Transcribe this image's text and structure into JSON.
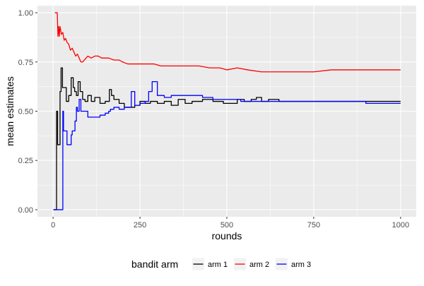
{
  "chart_data": {
    "type": "line",
    "xlabel": "rounds",
    "ylabel": "mean estimates",
    "xlim": [
      -45,
      1045
    ],
    "ylim": [
      -0.036,
      1.036
    ],
    "x_ticks": [
      0,
      250,
      500,
      750,
      1000
    ],
    "x_tick_labels": [
      "0",
      "250",
      "500",
      "750",
      "1000"
    ],
    "y_ticks": [
      0,
      0.25,
      0.5,
      0.75,
      1.0
    ],
    "y_tick_labels": [
      "0.00",
      "0.25",
      "0.50",
      "0.75",
      "1.00"
    ],
    "grid": true,
    "background_color": "#EBEBEB",
    "legend": {
      "title": "bandit arm",
      "position": "bottom",
      "entries": [
        "arm 1",
        "arm 2",
        "arm 3"
      ]
    },
    "series": [
      {
        "name": "arm 1",
        "color": "#000000",
        "step": true,
        "x": [
          1,
          8,
          10,
          13,
          17,
          20,
          23,
          27,
          32,
          38,
          45,
          52,
          58,
          62,
          67,
          72,
          78,
          85,
          92,
          100,
          110,
          120,
          135,
          150,
          162,
          168,
          175,
          190,
          205,
          220,
          235,
          250,
          265,
          280,
          300,
          320,
          340,
          360,
          380,
          400,
          430,
          460,
          490,
          510,
          530,
          550,
          570,
          585,
          600,
          620,
          650,
          700,
          750,
          800,
          850,
          900,
          950,
          1000
        ],
        "values": [
          0.0,
          0.0,
          0.5,
          0.33,
          0.33,
          0.6,
          0.72,
          0.62,
          0.62,
          0.55,
          0.58,
          0.67,
          0.62,
          0.6,
          0.58,
          0.65,
          0.6,
          0.56,
          0.55,
          0.58,
          0.55,
          0.57,
          0.54,
          0.55,
          0.61,
          0.58,
          0.56,
          0.54,
          0.52,
          0.52,
          0.53,
          0.55,
          0.54,
          0.55,
          0.54,
          0.55,
          0.53,
          0.56,
          0.54,
          0.55,
          0.56,
          0.55,
          0.54,
          0.54,
          0.56,
          0.55,
          0.56,
          0.57,
          0.55,
          0.56,
          0.55,
          0.55,
          0.55,
          0.55,
          0.55,
          0.55,
          0.55,
          0.55
        ]
      },
      {
        "name": "arm 2",
        "color": "#FF0000",
        "step": false,
        "x": [
          5,
          9,
          12,
          14,
          16,
          18,
          20,
          24,
          28,
          32,
          36,
          40,
          45,
          50,
          55,
          60,
          65,
          70,
          75,
          80,
          85,
          90,
          95,
          100,
          110,
          120,
          130,
          140,
          150,
          160,
          175,
          190,
          200,
          215,
          230,
          250,
          270,
          290,
          310,
          330,
          350,
          370,
          390,
          420,
          450,
          480,
          500,
          530,
          560,
          600,
          650,
          700,
          750,
          800,
          850,
          900,
          950,
          1000
        ],
        "values": [
          1.0,
          1.0,
          1.0,
          0.88,
          0.93,
          0.88,
          0.93,
          0.89,
          0.9,
          0.86,
          0.87,
          0.85,
          0.84,
          0.81,
          0.82,
          0.8,
          0.78,
          0.79,
          0.77,
          0.75,
          0.75,
          0.76,
          0.77,
          0.78,
          0.77,
          0.78,
          0.78,
          0.77,
          0.77,
          0.77,
          0.76,
          0.76,
          0.75,
          0.74,
          0.74,
          0.74,
          0.74,
          0.74,
          0.73,
          0.73,
          0.73,
          0.73,
          0.73,
          0.73,
          0.72,
          0.72,
          0.71,
          0.72,
          0.71,
          0.7,
          0.7,
          0.7,
          0.7,
          0.71,
          0.71,
          0.71,
          0.71,
          0.71
        ]
      },
      {
        "name": "arm 3",
        "color": "#0000FF",
        "step": true,
        "x": [
          1,
          25,
          28,
          30,
          34,
          40,
          47,
          52,
          55,
          58,
          63,
          67,
          70,
          75,
          80,
          90,
          100,
          110,
          120,
          135,
          150,
          160,
          165,
          175,
          190,
          205,
          220,
          225,
          235,
          250,
          265,
          275,
          285,
          300,
          320,
          340,
          360,
          380,
          400,
          430,
          460,
          490,
          510,
          540,
          560,
          600,
          650,
          700,
          750,
          800,
          850,
          900,
          950,
          1000
        ],
        "values": [
          0.0,
          0.0,
          0.5,
          0.4,
          0.4,
          0.33,
          0.33,
          0.38,
          0.4,
          0.4,
          0.45,
          0.52,
          0.5,
          0.56,
          0.5,
          0.5,
          0.47,
          0.47,
          0.47,
          0.48,
          0.49,
          0.5,
          0.51,
          0.52,
          0.51,
          0.52,
          0.52,
          0.6,
          0.53,
          0.54,
          0.55,
          0.6,
          0.65,
          0.58,
          0.57,
          0.58,
          0.58,
          0.58,
          0.58,
          0.57,
          0.56,
          0.56,
          0.56,
          0.55,
          0.55,
          0.55,
          0.55,
          0.55,
          0.55,
          0.55,
          0.55,
          0.54,
          0.54,
          0.54
        ]
      }
    ]
  }
}
